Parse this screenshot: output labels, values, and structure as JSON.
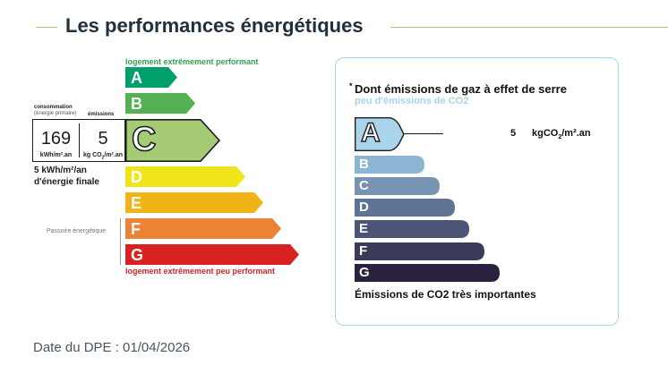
{
  "page_title": "Les performances énergétiques",
  "energy": {
    "top_label": "logement extrêmement performant",
    "bottom_label": "logement extrêmement peu performant",
    "classes": [
      {
        "letter": "A",
        "color": "#00a06d"
      },
      {
        "letter": "B",
        "color": "#53b153"
      },
      {
        "letter": "C",
        "color": "#a5cc74"
      },
      {
        "letter": "D",
        "color": "#f0e51a"
      },
      {
        "letter": "E",
        "color": "#f1b416"
      },
      {
        "letter": "F",
        "color": "#ec8235"
      },
      {
        "letter": "G",
        "color": "#d7221f"
      }
    ],
    "current_class": "C",
    "consommation_header": "consommation",
    "consommation_subheader": "(énergie primaire)",
    "emissions_header": "émissions",
    "consommation_value": "169",
    "consommation_unit": "kWh/m².an",
    "emissions_value": "5",
    "emissions_unit_prefix": "kg CO",
    "emissions_unit_sub": "2",
    "emissions_unit_suffix": "/m².an",
    "final_energy_line1": "5 kWh/m²/an",
    "final_energy_line2": "d'énergie finale",
    "passoire_label": "Passoire énergétique"
  },
  "ges": {
    "star": "*",
    "title": "Dont émissions de gaz à effet de serre",
    "subtitle": "peu d'émissions de CO2",
    "classes": [
      {
        "letter": "A",
        "color": "#a9d4ec"
      },
      {
        "letter": "B",
        "color": "#8cb4d3"
      },
      {
        "letter": "C",
        "color": "#7794b2"
      },
      {
        "letter": "D",
        "color": "#5f7395"
      },
      {
        "letter": "E",
        "color": "#4b5576"
      },
      {
        "letter": "F",
        "color": "#393b58"
      },
      {
        "letter": "G",
        "color": "#2a2140"
      }
    ],
    "current_class": "A",
    "value": "5",
    "unit_prefix": "kgCO",
    "unit_sub": "2",
    "unit_suffix": "/m².an",
    "bottom_label": "Émissions de CO2 très importantes"
  },
  "date_label": "Date du DPE : 01/04/2026"
}
